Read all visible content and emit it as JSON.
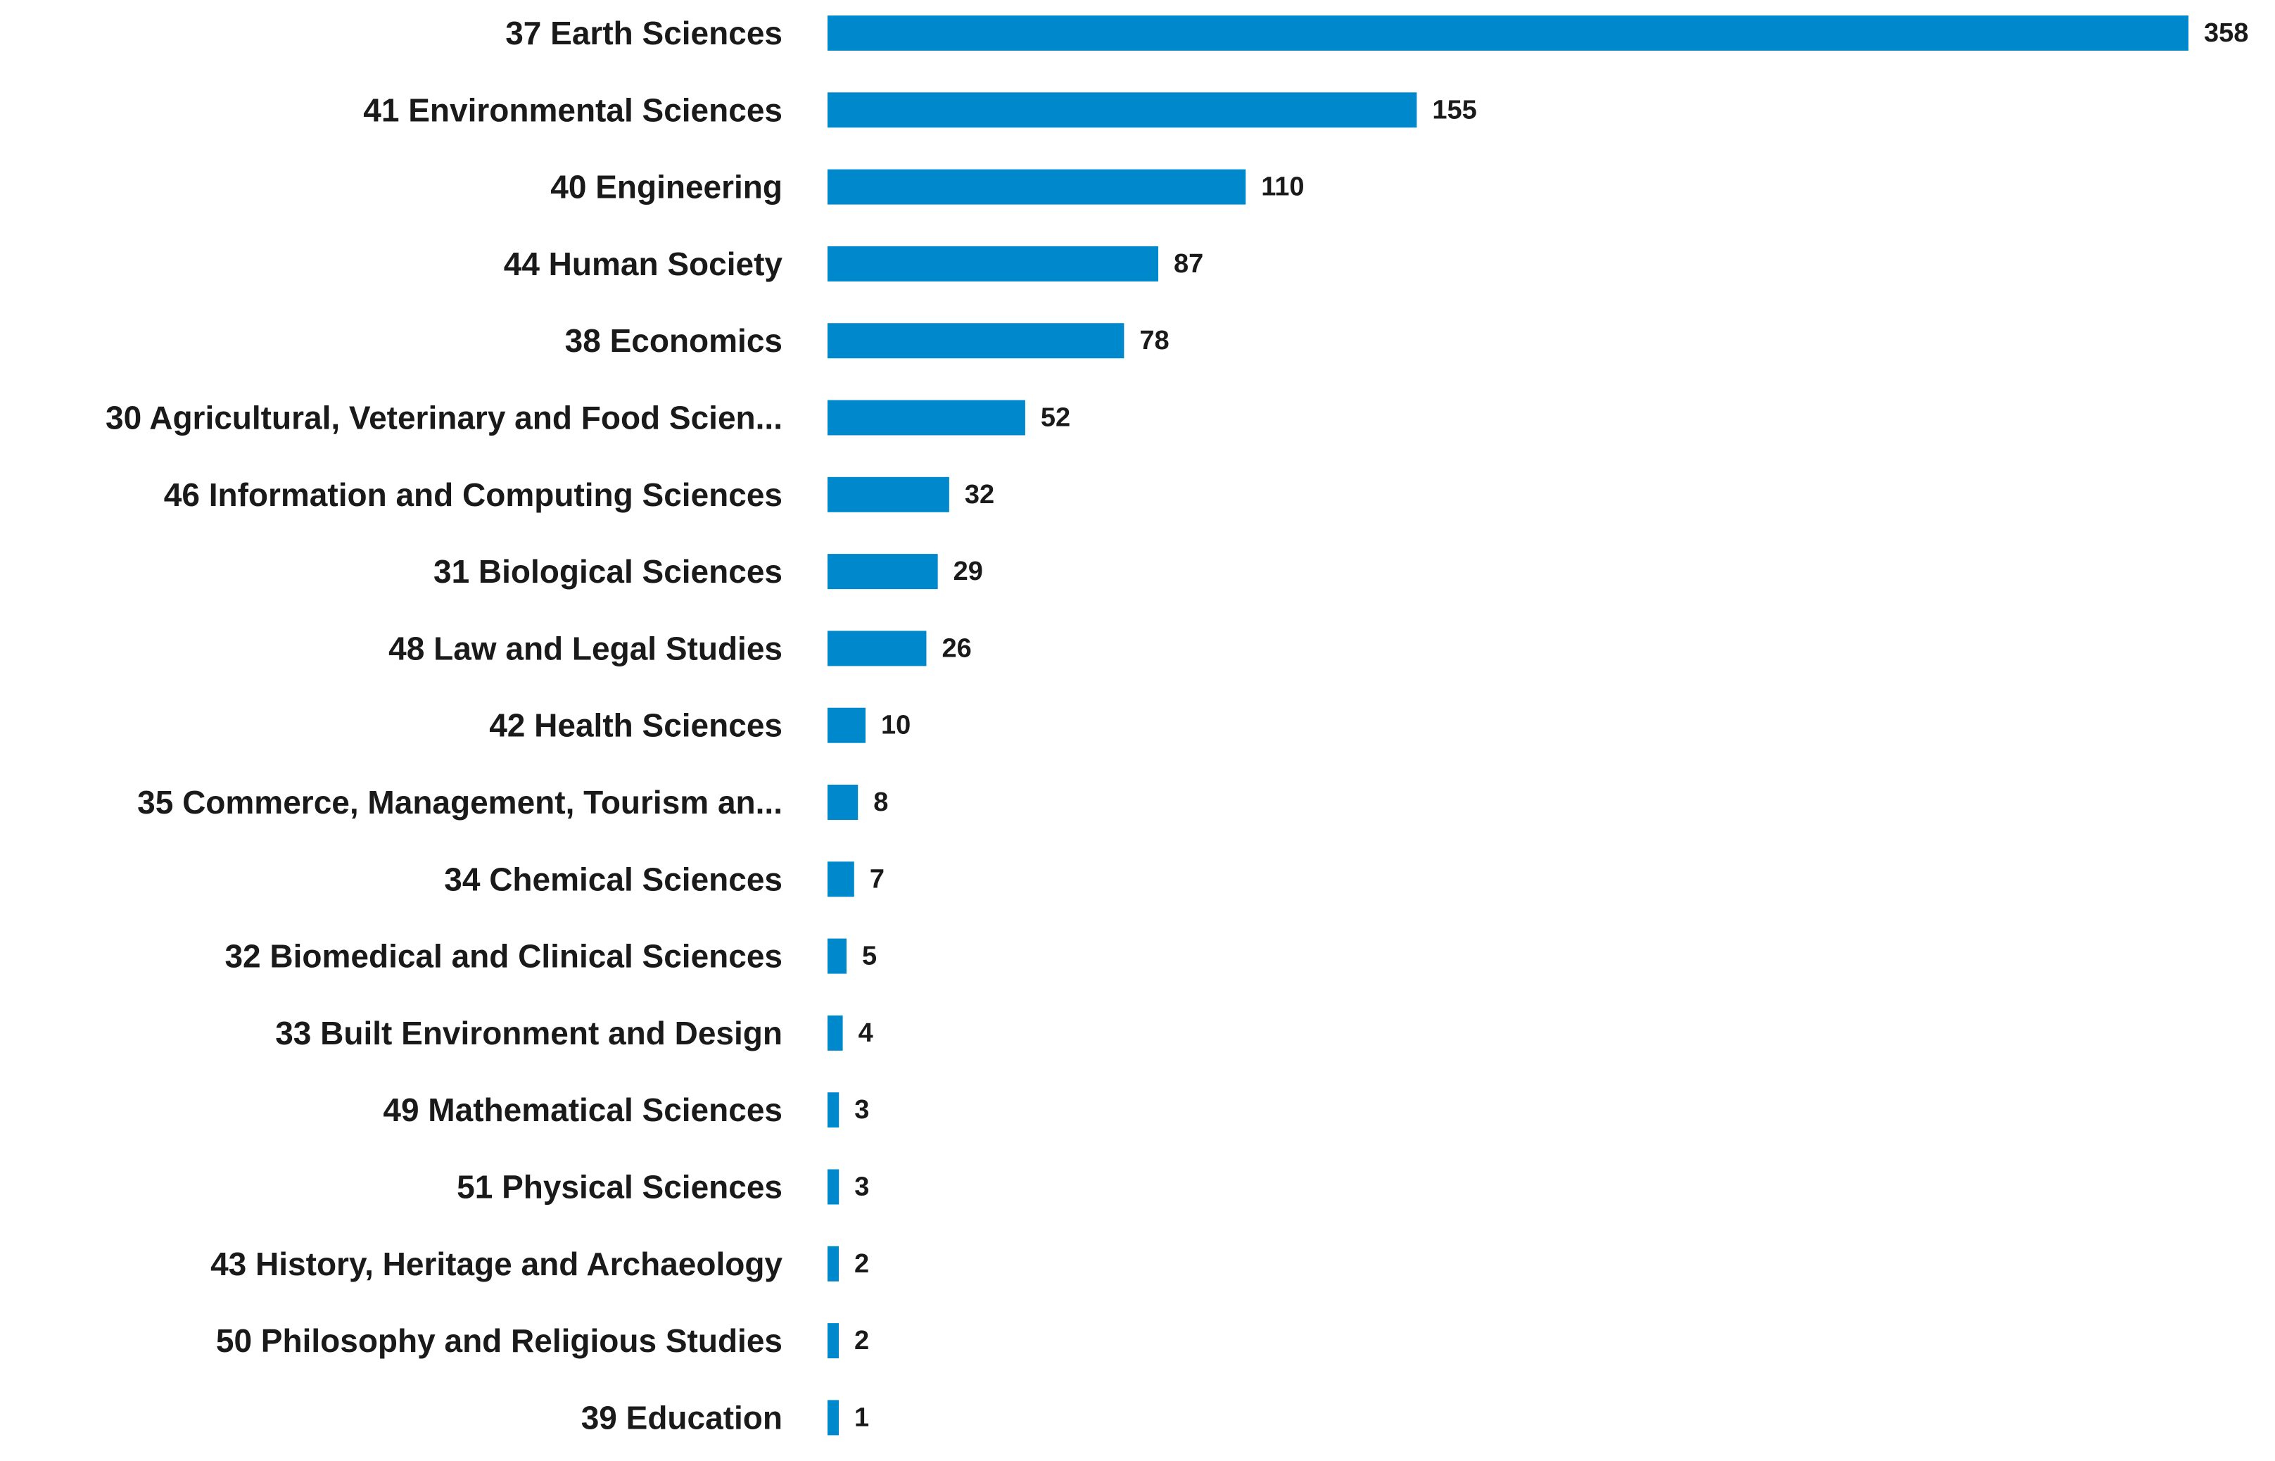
{
  "chart_data": {
    "type": "bar",
    "orientation": "horizontal",
    "categories": [
      "37 Earth Sciences",
      "41 Environmental Sciences",
      "40 Engineering",
      "44 Human Society",
      "38 Economics",
      "30 Agricultural, Veterinary and Food Scien...",
      "46 Information and Computing Sciences",
      "31 Biological Sciences",
      "48 Law and Legal Studies",
      "42 Health Sciences",
      "35 Commerce, Management, Tourism an...",
      "34 Chemical Sciences",
      "32 Biomedical and Clinical Sciences",
      "33 Built Environment and Design",
      "49 Mathematical Sciences",
      "51 Physical Sciences",
      "43 History, Heritage and Archaeology",
      "50 Philosophy and Religious Studies",
      "39 Education"
    ],
    "values": [
      358,
      155,
      110,
      87,
      78,
      52,
      32,
      29,
      26,
      10,
      8,
      7,
      5,
      4,
      3,
      3,
      2,
      2,
      1
    ],
    "bar_color": "#0088cc",
    "title": "",
    "xlabel": "",
    "ylabel": "",
    "xlim": [
      0,
      358
    ],
    "grid": false,
    "legend": "none",
    "data_labels": true
  }
}
